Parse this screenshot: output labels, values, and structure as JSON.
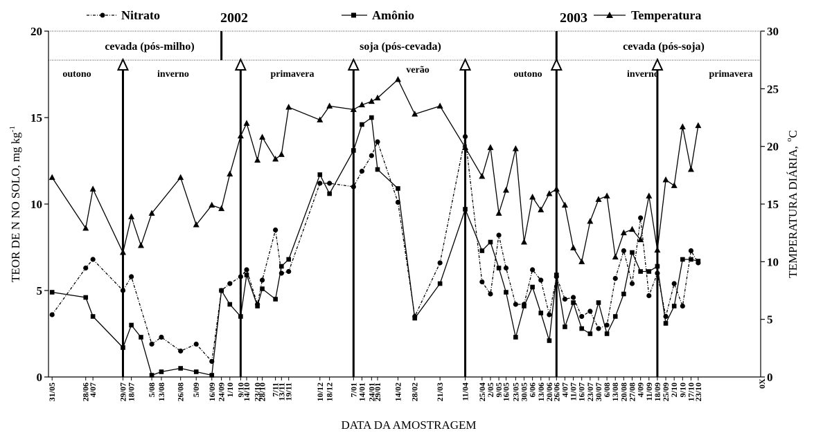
{
  "chart_data": {
    "type": "line",
    "legend": [
      {
        "label": "Nitrato",
        "marker": "circle",
        "style": "dotted"
      },
      {
        "label": "Amônio",
        "marker": "square",
        "style": "solid"
      },
      {
        "label": "Temperatura",
        "marker": "triangle",
        "style": "solid"
      }
    ],
    "years": [
      "2002",
      "2003"
    ],
    "crops": [
      "cevada (pós-milho)",
      "soja (pós-cevada)",
      "cevada (pós-soja)"
    ],
    "seasons": [
      "outono",
      "inverno",
      "primavera",
      "verão",
      "outono",
      "inverno",
      "primavera"
    ],
    "xlabel": "DATA DA AMOSTRAGEM",
    "ylabel_left": "TEOR DE N NO SOLO,  mg kg",
    "ylabel_left_sup": "-1",
    "ylabel_right": "TEMPERATURA DIÁRIA,",
    "ylabel_right_sup": "o",
    "ylabel_right_unit": "C",
    "ylim_left": [
      0,
      20
    ],
    "ylim_right": [
      0,
      30
    ],
    "yticks_left": [
      "0",
      "5",
      "10",
      "15",
      "20"
    ],
    "yticks_right": [
      "0",
      "5",
      "10",
      "15",
      "20",
      "25",
      "30"
    ],
    "x_axis_end": "0X",
    "x_tick_labels": [
      "31/05",
      "28/06",
      "4/07",
      "29/07",
      "18/07",
      "5/08",
      "13/08",
      "26/08",
      "5/09",
      "16/09",
      "24/09",
      "1/10",
      "9/10",
      "14/10",
      "23/10",
      "28/10",
      "7/11",
      "13/11",
      "19/11",
      "10/12",
      "18/12",
      "7/01",
      "14/01",
      "24/01",
      "29/01",
      "14/02",
      "28/02",
      "21/03",
      "11/04",
      "25/04",
      "2/05",
      "9/05",
      "16/05",
      "23/05",
      "30/05",
      "6/06",
      "13/06",
      "20/06",
      "26/06",
      "4/07",
      "11/07",
      "16/07",
      "23/07",
      "30/07",
      "6/08",
      "13/08",
      "20/08",
      "27/08",
      "4/09",
      "11/09",
      "18/09",
      "25/09",
      "2/10",
      "9/10",
      "17/10",
      "23/10"
    ],
    "x_tick_positions": [
      0,
      28,
      34,
      59,
      66,
      83,
      91,
      107,
      120,
      133,
      141,
      148,
      157,
      162,
      171,
      175,
      186,
      191,
      197,
      223,
      231,
      251,
      258,
      266,
      271,
      288,
      302,
      323,
      344,
      358,
      365,
      372,
      378,
      386,
      393,
      400,
      407,
      414,
      420,
      427,
      434,
      441,
      448,
      455,
      462,
      469,
      476,
      483,
      490,
      497,
      504,
      511,
      518,
      525,
      532,
      538
    ],
    "x_range": [
      -3,
      590
    ],
    "season_boundaries": [
      59,
      157,
      251,
      344,
      420,
      504
    ],
    "crop_boundaries": [
      141,
      420
    ],
    "series": [
      {
        "name": "Nitrato",
        "axis": "left",
        "x": [
          0,
          28,
          34,
          59,
          66,
          83,
          91,
          107,
          120,
          133,
          141,
          148,
          157,
          162,
          171,
          175,
          186,
          191,
          197,
          223,
          231,
          251,
          258,
          266,
          271,
          288,
          302,
          323,
          344,
          358,
          365,
          372,
          378,
          386,
          393,
          400,
          407,
          414,
          420,
          427,
          434,
          441,
          448,
          455,
          462,
          469,
          476,
          483,
          490,
          497,
          504,
          511,
          518,
          525,
          532,
          538
        ],
        "values": [
          3.6,
          6.3,
          6.8,
          5.0,
          5.8,
          1.9,
          2.3,
          1.5,
          1.9,
          0.9,
          5.0,
          5.4,
          5.8,
          6.2,
          4.2,
          5.6,
          8.5,
          6.0,
          6.1,
          11.2,
          11.2,
          11.0,
          11.9,
          12.8,
          13.6,
          10.1,
          3.5,
          6.6,
          13.9,
          5.5,
          4.8,
          8.2,
          6.3,
          4.2,
          4.2,
          6.2,
          5.6,
          3.6,
          5.8,
          4.5,
          4.6,
          3.5,
          3.8,
          2.8,
          3.0,
          5.7,
          7.3,
          5.4,
          9.2,
          4.7,
          6.0,
          3.5,
          5.4,
          4.1,
          7.3,
          6.6
        ]
      },
      {
        "name": "Amônio",
        "axis": "left",
        "x": [
          0,
          28,
          34,
          59,
          66,
          74,
          83,
          91,
          107,
          120,
          133,
          141,
          148,
          157,
          162,
          171,
          175,
          186,
          191,
          197,
          223,
          231,
          251,
          258,
          266,
          271,
          288,
          302,
          323,
          344,
          358,
          365,
          372,
          378,
          386,
          393,
          400,
          407,
          414,
          420,
          427,
          434,
          441,
          448,
          455,
          462,
          469,
          476,
          483,
          490,
          497,
          504,
          511,
          518,
          525,
          532,
          538
        ],
        "values": [
          4.9,
          4.6,
          3.5,
          1.7,
          3.0,
          2.3,
          0.1,
          0.3,
          0.5,
          0.3,
          0.1,
          5.0,
          4.2,
          3.5,
          5.9,
          4.1,
          5.1,
          4.5,
          6.4,
          6.8,
          11.7,
          10.6,
          13.1,
          14.6,
          15.0,
          12.0,
          10.9,
          3.4,
          5.4,
          9.7,
          7.3,
          7.8,
          6.3,
          4.9,
          2.3,
          4.1,
          5.2,
          3.7,
          2.1,
          5.9,
          2.9,
          4.3,
          2.8,
          2.5,
          4.3,
          2.5,
          3.5,
          4.8,
          7.2,
          6.1,
          6.1,
          6.4,
          3.1,
          4.1,
          6.8,
          6.8,
          6.7
        ]
      },
      {
        "name": "Temperatura",
        "axis": "right",
        "x": [
          0,
          28,
          34,
          59,
          66,
          74,
          83,
          107,
          120,
          133,
          141,
          148,
          157,
          162,
          171,
          175,
          186,
          191,
          197,
          223,
          231,
          251,
          258,
          266,
          271,
          288,
          302,
          323,
          344,
          358,
          365,
          372,
          378,
          386,
          393,
          400,
          407,
          414,
          420,
          427,
          434,
          441,
          448,
          455,
          462,
          469,
          476,
          483,
          490,
          497,
          504,
          511,
          518,
          525,
          532,
          538
        ],
        "values": [
          17.3,
          12.9,
          16.3,
          10.8,
          13.9,
          11.4,
          14.2,
          17.3,
          13.2,
          14.9,
          14.6,
          17.6,
          20.9,
          22.0,
          18.8,
          20.8,
          18.9,
          19.3,
          23.4,
          22.3,
          23.5,
          23.2,
          23.6,
          23.9,
          24.2,
          25.8,
          22.8,
          23.5,
          19.9,
          17.4,
          19.9,
          14.2,
          16.2,
          19.8,
          11.7,
          15.6,
          14.5,
          15.9,
          16.3,
          14.9,
          11.2,
          10.0,
          13.5,
          15.4,
          15.7,
          10.4,
          12.5,
          12.8,
          11.9,
          15.7,
          11.0,
          17.1,
          16.6,
          21.7,
          18.0,
          21.8
        ]
      }
    ]
  }
}
